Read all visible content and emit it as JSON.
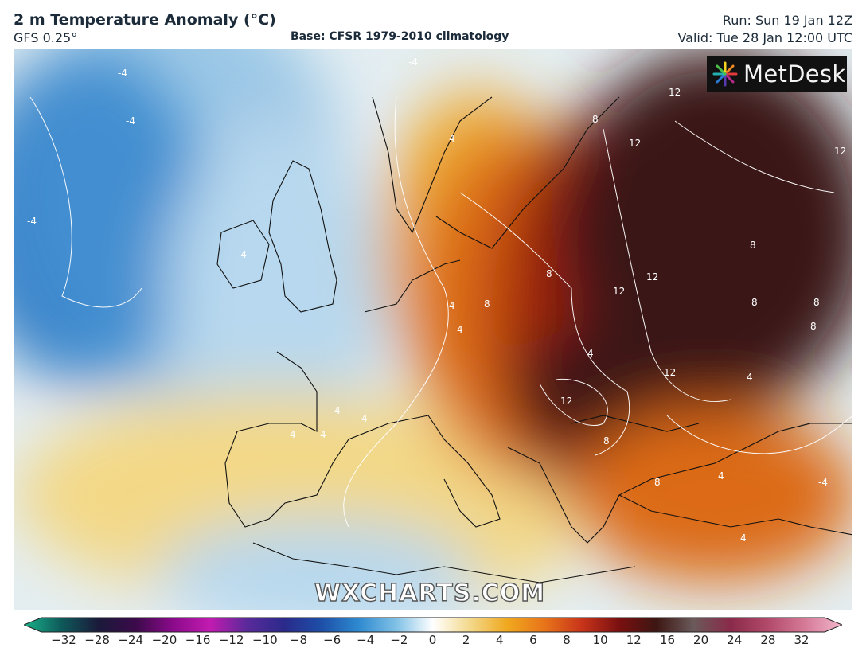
{
  "header": {
    "title": "2 m Temperature Anomaly (°C)",
    "model": "GFS 0.25°",
    "base": "Base: CFSR 1979-2010 climatology",
    "run": "Run: Sun 19 Jan 12Z",
    "valid": "Valid: Tue 28 Jan 12:00 UTC"
  },
  "logo": {
    "text": "MetDesk",
    "icon": "metdesk-starburst-icon"
  },
  "watermark": "WXCHARTS.COM",
  "contour_labels": [
    "-4",
    "-4",
    "-4",
    "-4",
    "-4",
    "-4",
    "4",
    "4",
    "4",
    "4",
    "4",
    "4",
    "4",
    "4",
    "4",
    "4",
    "4",
    "8",
    "8",
    "8",
    "8",
    "8",
    "8",
    "8",
    "8",
    "8",
    "12",
    "12",
    "12",
    "12",
    "12",
    "12",
    "12"
  ],
  "legend": {
    "ticks": [
      "−32",
      "−28",
      "−24",
      "−20",
      "−16",
      "−12",
      "−10",
      "−8",
      "−6",
      "−4",
      "−2",
      "0",
      "2",
      "4",
      "6",
      "8",
      "10",
      "12",
      "16",
      "20",
      "24",
      "28",
      "32"
    ],
    "colors": [
      "#19b38a",
      "#0e5a5a",
      "#1a1a3a",
      "#3b0a4a",
      "#8a0a8a",
      "#c21bb0",
      "#5a2a9a",
      "#2a2a8a",
      "#1d4fa8",
      "#2e8ad0",
      "#7fc0e6",
      "#ffffff",
      "#f3d88a",
      "#f0a81e",
      "#e8741a",
      "#c8341a",
      "#7a1010",
      "#3d1612",
      "#6a5a5a",
      "#8a2a4a",
      "#b24a6a",
      "#d57a98",
      "#f2b6cb"
    ]
  },
  "map_colors": {
    "deep_cold": "#1f6fc0",
    "cold": "#5ea7dc",
    "cool": "#b7d8ee",
    "neutral": "#f2f3ef",
    "mild": "#f3d886",
    "warm": "#efab32",
    "hot": "#dc6a14",
    "very_hot": "#a3210e",
    "extreme": "#3a1512"
  }
}
